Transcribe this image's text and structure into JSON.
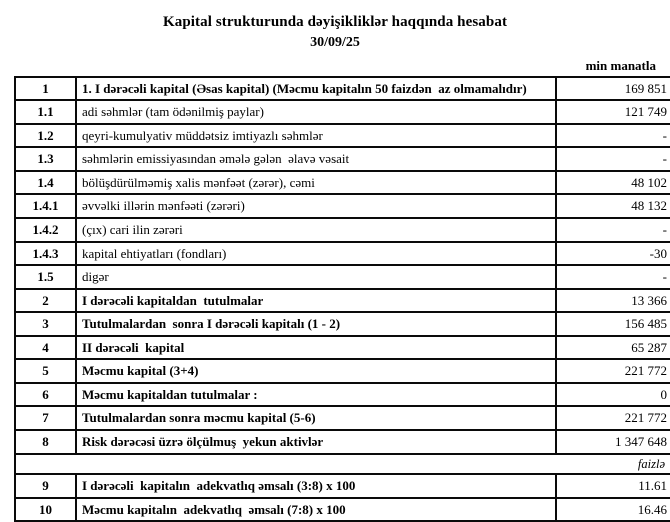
{
  "header": {
    "title": "Kapital strukturunda dəyişikliklər haqqında hesabat",
    "date": "30/09/25",
    "unit_label": "min manatla"
  },
  "table": {
    "percent_unit_label": "faizlə",
    "rows": [
      {
        "num": "1",
        "label": "1. I dərəcəli kapital (Əsas kapital) (Məcmu kapitalın 50 faizdən  az olmamalıdır)",
        "value": "169 851",
        "bold": true
      },
      {
        "num": "1.1",
        "label": "adi səhmlər (tam ödənilmiş paylar)",
        "value": "121 749",
        "bold": false
      },
      {
        "num": "1.2",
        "label": "qeyri-kumulyativ müddətsiz imtiyazlı səhmlər",
        "value": "-",
        "bold": false
      },
      {
        "num": "1.3",
        "label": "səhmlərin emissiyasından əmələ gələn  əlavə vəsait",
        "value": "-",
        "bold": false
      },
      {
        "num": "1.4",
        "label": "bölüşdürülməmiş xalis mənfəət (zərər), cəmi",
        "value": "48 102",
        "bold": false
      },
      {
        "num": "1.4.1",
        "label": "əvvəlki illərin mənfəəti (zərəri)",
        "value": "48 132",
        "bold": false
      },
      {
        "num": "1.4.2",
        "label": "(çıx) cari ilin zərəri",
        "value": "-",
        "bold": false
      },
      {
        "num": "1.4.3",
        "label": "kapital ehtiyatları (fondları)",
        "value": "-30",
        "bold": false
      },
      {
        "num": "1.5",
        "label": "digər",
        "value": "-",
        "bold": false
      },
      {
        "num": "2",
        "label": "I dərəcəli kapitaldan  tutulmalar",
        "value": "13 366",
        "bold": true
      },
      {
        "num": "3",
        "label": "Tutulmalardan  sonra I dərəcəli kapitalı (1 - 2)",
        "value": "156 485",
        "bold": true
      },
      {
        "num": "4",
        "label": "II dərəcəli  kapital",
        "value": "65 287",
        "bold": true
      },
      {
        "num": "5",
        "label": "Məcmu kapital (3+4)",
        "value": "221 772",
        "bold": true
      },
      {
        "num": "6",
        "label": "Məcmu kapitaldan tutulmalar :",
        "value": "0",
        "bold": true
      },
      {
        "num": "7",
        "label": "Tutulmalardan sonra məcmu kapital (5-6)",
        "value": "221 772",
        "bold": true
      },
      {
        "num": "8",
        "label": "Risk dərəcəsi üzrə ölçülmuş  yekun aktivlər",
        "value": "1 347 648",
        "bold": true
      },
      {
        "unit_separator": true
      },
      {
        "num": "9",
        "label": "I dərəcəli  kapitalın  adekvatlıq əmsalı (3:8) x 100",
        "value": "11.61",
        "bold": true
      },
      {
        "num": "10",
        "label": "Məcmu kapitalın  adekvatlıq  əmsalı (7:8) x 100",
        "value": "16.46",
        "bold": true
      }
    ]
  }
}
